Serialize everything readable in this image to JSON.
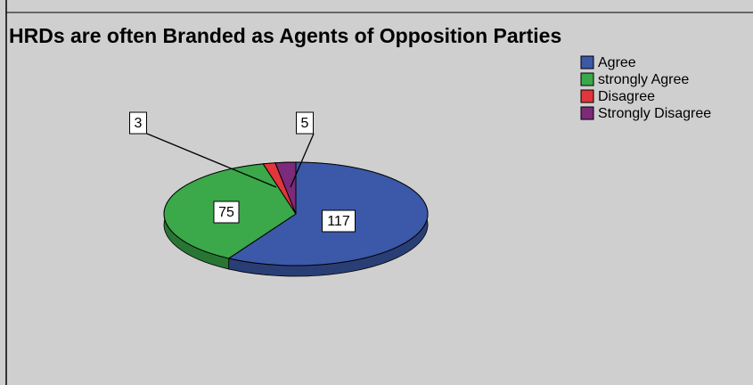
{
  "chart_data": {
    "type": "pie",
    "title": "HRDs are often Branded as Agents of Opposition Parties",
    "categories": [
      "Agree",
      "strongly Agree",
      "Disagree",
      "Strongly Disagree"
    ],
    "values": [
      117,
      75,
      3,
      5
    ],
    "colors": [
      "#3c58a8",
      "#3ba84a",
      "#e2363a",
      "#7c2a7a"
    ]
  }
}
